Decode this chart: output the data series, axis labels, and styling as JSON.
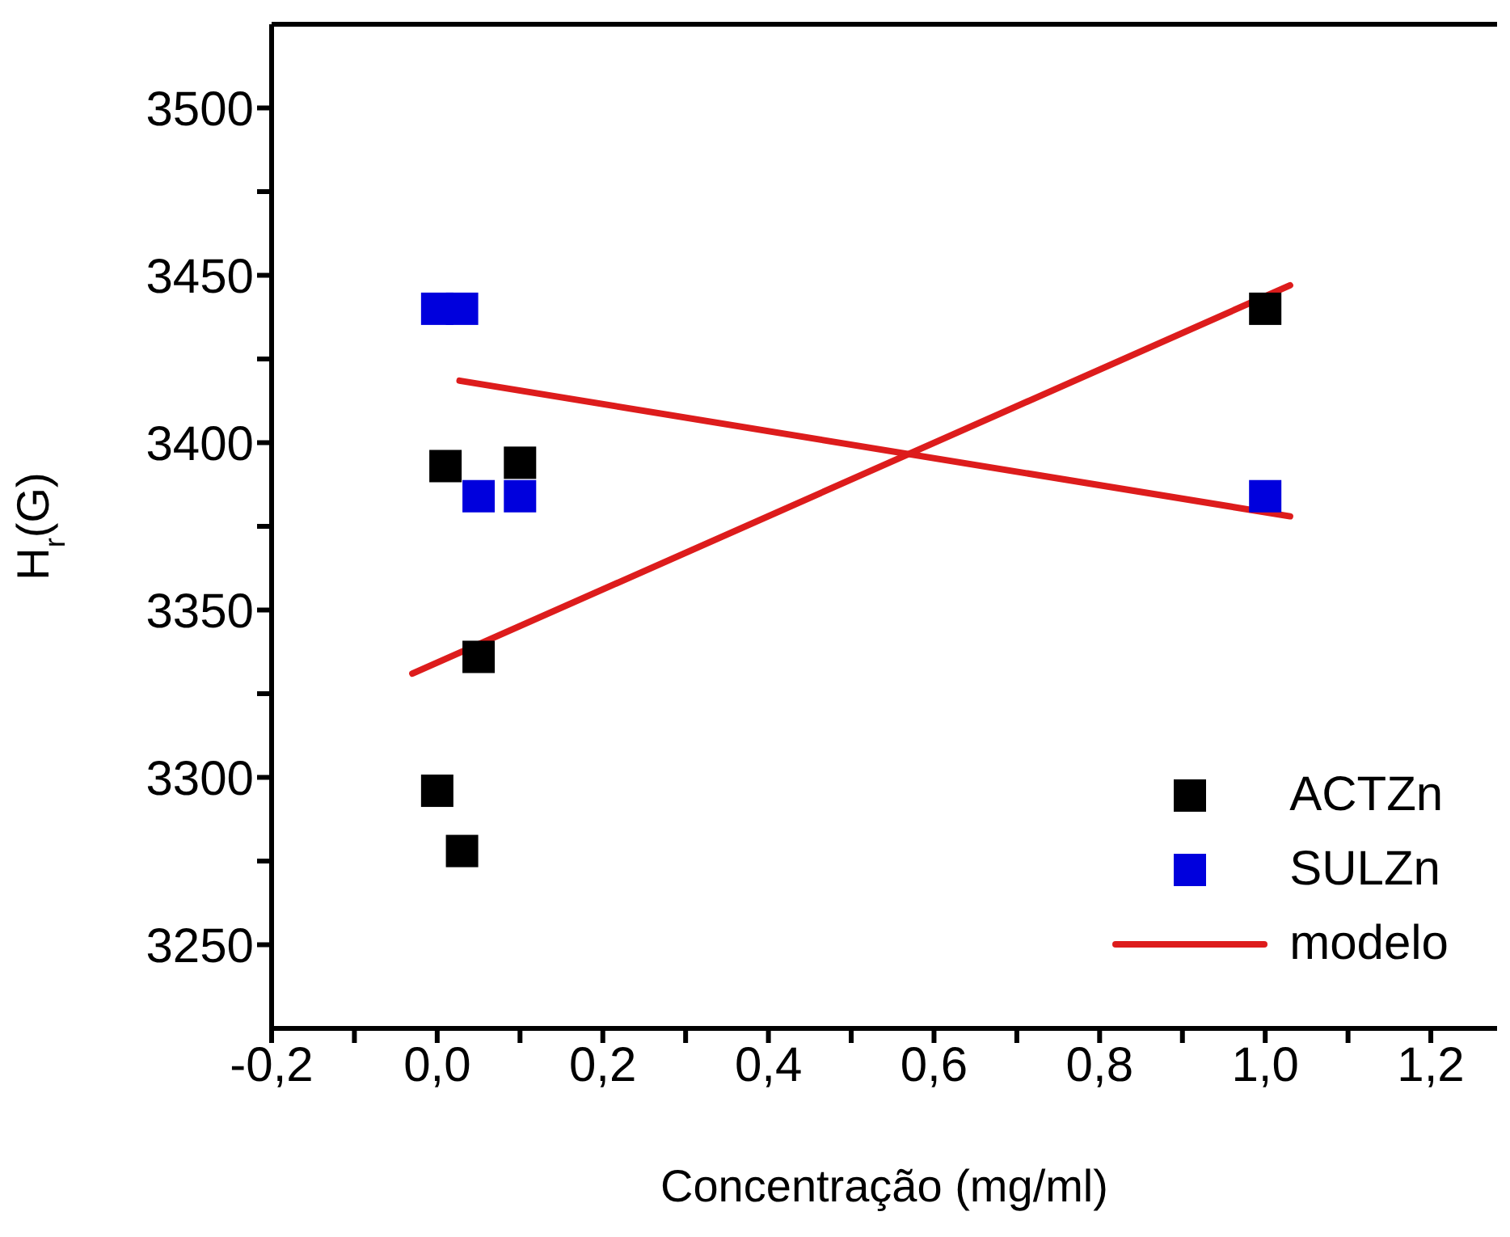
{
  "chart_data": {
    "type": "scatter",
    "xlabel": "Concentração (mg/ml)",
    "ylabel": "H$_{r}$(G)",
    "xlim": [
      -0.2,
      1.28
    ],
    "xticks": [
      {
        "value": -0.2,
        "label": "-0,2"
      },
      {
        "value": -0.1,
        "label": null
      },
      {
        "value": 0,
        "label": "0,0"
      },
      {
        "value": 0.1,
        "label": null
      },
      {
        "value": 0.2,
        "label": "0,2"
      },
      {
        "value": 0.3,
        "label": null
      },
      {
        "value": 0.4,
        "label": "0,4"
      },
      {
        "value": 0.5,
        "label": null
      },
      {
        "value": 0.6,
        "label": "0,6"
      },
      {
        "value": 0.7,
        "label": null
      },
      {
        "value": 0.8,
        "label": "0,8"
      },
      {
        "value": 0.9,
        "label": null
      },
      {
        "value": 1.0,
        "label": "1,0"
      },
      {
        "value": 1.1,
        "label": null
      },
      {
        "value": 1.2,
        "label": "1,2"
      }
    ],
    "ylim": [
      3225,
      3525
    ],
    "yticks": [
      {
        "value": 3250,
        "label": "3250"
      },
      {
        "value": 3275,
        "label": null
      },
      {
        "value": 3300,
        "label": "3300"
      },
      {
        "value": 3325,
        "label": null
      },
      {
        "value": 3350,
        "label": "3350"
      },
      {
        "value": 3375,
        "label": null
      },
      {
        "value": 3400,
        "label": "3400"
      },
      {
        "value": 3425,
        "label": null
      },
      {
        "value": 3450,
        "label": "3450"
      },
      {
        "value": 3475,
        "label": null
      },
      {
        "value": 3500,
        "label": "3500"
      }
    ],
    "grid": false,
    "legend": "bottom right",
    "marker": "square",
    "series": [
      {
        "name": "ACTZn",
        "color": "#000000",
        "x": [
          0.01,
          0.1,
          0.05,
          0.0,
          0.03,
          1.0
        ],
        "values": [
          3393,
          3394,
          3336,
          3296,
          3278,
          3440
        ]
      },
      {
        "name": "SULZn",
        "color": "#0000dd",
        "x": [
          0.0,
          0.03,
          0.05,
          0.1,
          1.0
        ],
        "values": [
          3440,
          3440,
          3384,
          3384,
          3384
        ]
      },
      {
        "name": "modelo",
        "type": "line",
        "color": "#dd1c1c",
        "line_style": "solid",
        "marker": "none",
        "x": [
          -0.03,
          1.03
        ],
        "values": [
          3331,
          3447
        ]
      },
      {
        "type": "line",
        "color": "#dd1c1c",
        "line_style": "solid",
        "marker": "none",
        "x": [
          0.027,
          1.03
        ],
        "values": [
          3418.5,
          3378
        ]
      }
    ]
  }
}
